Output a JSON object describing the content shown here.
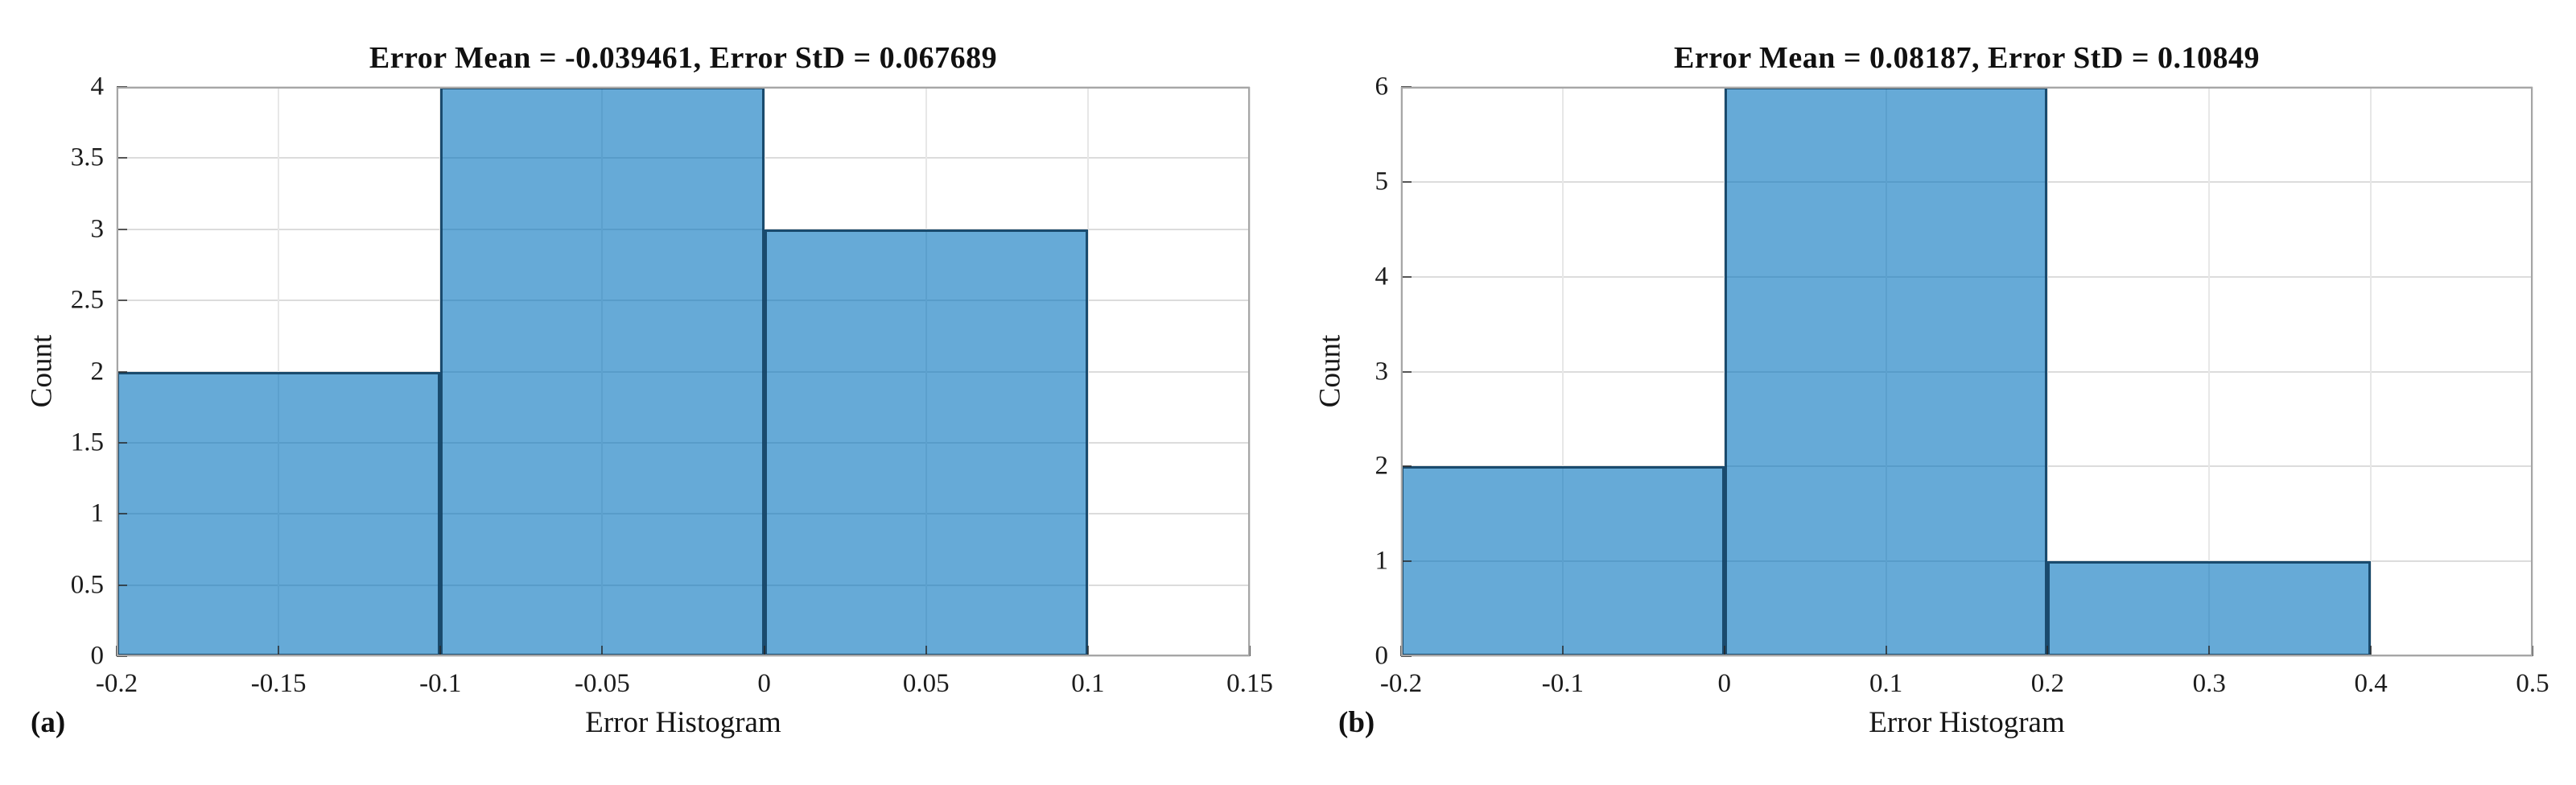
{
  "figure": {
    "panels": [
      {
        "corner_label": "(a)"
      },
      {
        "corner_label": "(b)"
      }
    ]
  },
  "chart_data": [
    {
      "type": "bar",
      "subtype": "histogram",
      "title": "Error Mean = -0.039461, Error StD = 0.067689",
      "xlabel": "Error Histogram",
      "ylabel": "Count",
      "xlim": [
        -0.2,
        0.15
      ],
      "ylim": [
        0,
        4
      ],
      "xticks": {
        "values": [
          -0.2,
          -0.15,
          -0.1,
          -0.05,
          0,
          0.05,
          0.1,
          0.15
        ],
        "labels": [
          "-0.2",
          "-0.15",
          "-0.1",
          "-0.05",
          "0",
          "0.05",
          "0.1",
          "0.15"
        ]
      },
      "yticks": {
        "values": [
          0,
          0.5,
          1,
          1.5,
          2,
          2.5,
          3,
          3.5,
          4
        ],
        "labels": [
          "0",
          "0.5",
          "1",
          "1.5",
          "2",
          "2.5",
          "3",
          "3.5",
          "4"
        ]
      },
      "bins": [
        {
          "x0": -0.2,
          "x1": -0.1,
          "count": 2
        },
        {
          "x0": -0.1,
          "x1": 0,
          "count": 4
        },
        {
          "x0": 0,
          "x1": 0.1,
          "count": 3
        }
      ],
      "grid": true,
      "legend_position": "none",
      "colors": {
        "bar_fill": "rgba(0,114,189,0.6)",
        "bar_edge": "rgba(13,59,92,0.85)",
        "grid_h": "#dcdcdc",
        "grid_v": "#e7e7e7",
        "axis_box": "#a6a6a6",
        "tick": "rgba(40,40,40,0.75)",
        "text": "#111111"
      }
    },
    {
      "type": "bar",
      "subtype": "histogram",
      "title": "Error Mean = 0.08187, Error StD = 0.10849",
      "xlabel": "Error Histogram",
      "ylabel": "Count",
      "xlim": [
        -0.2,
        0.5
      ],
      "ylim": [
        0,
        6
      ],
      "xticks": {
        "values": [
          -0.2,
          -0.1,
          0,
          0.1,
          0.2,
          0.3,
          0.4,
          0.5
        ],
        "labels": [
          "-0.2",
          "-0.1",
          "0",
          "0.1",
          "0.2",
          "0.3",
          "0.4",
          "0.5"
        ]
      },
      "yticks": {
        "values": [
          0,
          1,
          2,
          3,
          4,
          5,
          6
        ],
        "labels": [
          "0",
          "1",
          "2",
          "3",
          "4",
          "5",
          "6"
        ]
      },
      "bins": [
        {
          "x0": -0.2,
          "x1": 0,
          "count": 2
        },
        {
          "x0": 0,
          "x1": 0.2,
          "count": 6
        },
        {
          "x0": 0.2,
          "x1": 0.4,
          "count": 1
        }
      ],
      "grid": true,
      "legend_position": "none",
      "colors": {
        "bar_fill": "rgba(0,114,189,0.6)",
        "bar_edge": "rgba(13,59,92,0.85)",
        "grid_h": "#dcdcdc",
        "grid_v": "#e7e7e7",
        "axis_box": "#a6a6a6",
        "tick": "rgba(40,40,40,0.75)",
        "text": "#111111"
      }
    }
  ]
}
